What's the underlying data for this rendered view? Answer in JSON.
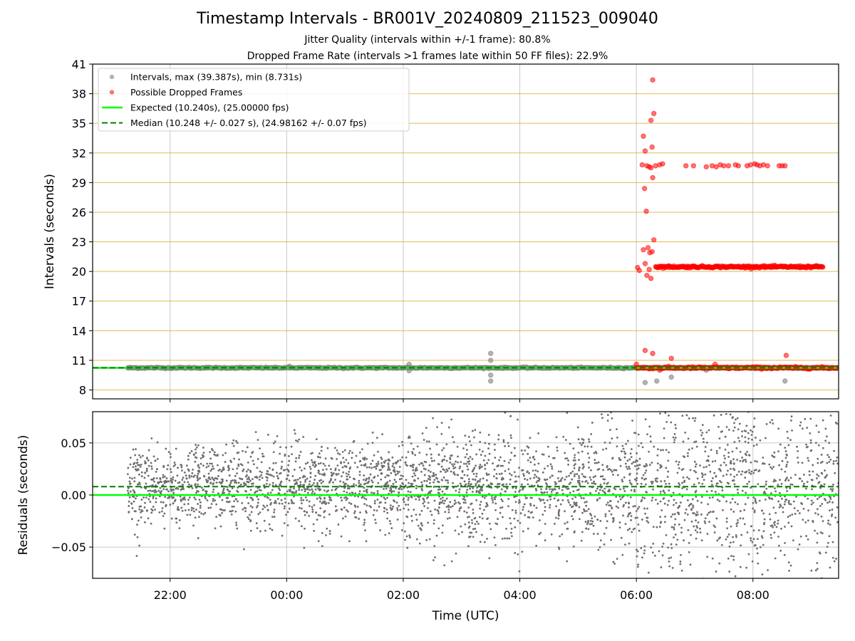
{
  "title": "Timestamp Intervals - BR001V_20240809_211523_009040",
  "subtitle_1": "Jitter Quality (intervals within +/-1 frame): 80.8%",
  "subtitle_2": "Dropped Frame Rate (intervals >1 frames late within 50 FF files): 22.9%",
  "colors": {
    "intervals": "#808080",
    "dropped": "#ff0000",
    "expected": "#00ff00",
    "median": "#008000",
    "hgrid_top": "#daa520",
    "grid": "#c8c8c8"
  },
  "chart_data": [
    {
      "type": "scatter",
      "ylabel": "Intervals (seconds)",
      "ylim": [
        7.1,
        41
      ],
      "yticks": [
        8,
        11,
        14,
        17,
        20,
        23,
        26,
        29,
        32,
        35,
        38,
        41
      ],
      "xlim_hours": [
        -3.33,
        9.47
      ],
      "grid": true,
      "legend_placement": "upper left",
      "legend": [
        {
          "label": "Intervals, max (39.387s), min (8.731s)",
          "marker": "gray-circle"
        },
        {
          "label": "Possible Dropped Frames",
          "marker": "red-circle"
        },
        {
          "label": "Expected (10.240s), (25.00000 fps)",
          "marker": "green-solid-line"
        },
        {
          "label": "Median (10.248 +/- 0.027 s), (24.98162 +/- 0.07 fps)",
          "marker": "green-dashed-line"
        }
      ],
      "expected": 10.24,
      "median": 10.248,
      "intervals_band": {
        "start_hour": -2.73,
        "end_hour": 9.47,
        "value": 10.24
      },
      "interval_outliers": [
        {
          "x": 0.05,
          "y": 10.4
        },
        {
          "x": 2.1,
          "y": 10.6
        },
        {
          "x": 2.1,
          "y": 9.95
        },
        {
          "x": 3.5,
          "y": 11.7
        },
        {
          "x": 3.5,
          "y": 11.0
        },
        {
          "x": 3.5,
          "y": 9.5
        },
        {
          "x": 3.5,
          "y": 8.9
        },
        {
          "x": 6.15,
          "y": 8.75
        },
        {
          "x": 6.35,
          "y": 8.9
        },
        {
          "x": 6.6,
          "y": 9.3
        },
        {
          "x": 8.55,
          "y": 8.9
        },
        {
          "x": 7.2,
          "y": 10.0
        }
      ],
      "dropped_bands": [
        {
          "start_hour": 6.0,
          "end_hour": 9.45,
          "value": 10.24
        },
        {
          "start_hour": 6.33,
          "end_hour": 9.2,
          "value": 20.47
        }
      ],
      "dropped_points": [
        {
          "x": 6.28,
          "y": 39.4
        },
        {
          "x": 6.3,
          "y": 36.0
        },
        {
          "x": 6.25,
          "y": 35.3
        },
        {
          "x": 6.12,
          "y": 33.7
        },
        {
          "x": 6.27,
          "y": 32.6
        },
        {
          "x": 6.15,
          "y": 32.2
        },
        {
          "x": 6.1,
          "y": 30.8
        },
        {
          "x": 6.18,
          "y": 30.7
        },
        {
          "x": 6.22,
          "y": 30.6
        },
        {
          "x": 6.25,
          "y": 30.5
        },
        {
          "x": 6.33,
          "y": 30.7
        },
        {
          "x": 6.4,
          "y": 30.8
        },
        {
          "x": 6.45,
          "y": 30.9
        },
        {
          "x": 6.85,
          "y": 30.7
        },
        {
          "x": 6.98,
          "y": 30.7
        },
        {
          "x": 7.2,
          "y": 30.6
        },
        {
          "x": 7.3,
          "y": 30.7
        },
        {
          "x": 7.37,
          "y": 30.6
        },
        {
          "x": 7.44,
          "y": 30.8
        },
        {
          "x": 7.5,
          "y": 30.7
        },
        {
          "x": 7.58,
          "y": 30.7
        },
        {
          "x": 7.7,
          "y": 30.8
        },
        {
          "x": 7.75,
          "y": 30.7
        },
        {
          "x": 7.9,
          "y": 30.7
        },
        {
          "x": 7.96,
          "y": 30.8
        },
        {
          "x": 8.03,
          "y": 30.9
        },
        {
          "x": 8.07,
          "y": 30.8
        },
        {
          "x": 8.12,
          "y": 30.7
        },
        {
          "x": 8.18,
          "y": 30.8
        },
        {
          "x": 8.25,
          "y": 30.7
        },
        {
          "x": 8.45,
          "y": 30.7
        },
        {
          "x": 8.5,
          "y": 30.7
        },
        {
          "x": 8.55,
          "y": 30.7
        },
        {
          "x": 6.28,
          "y": 29.5
        },
        {
          "x": 6.14,
          "y": 28.4
        },
        {
          "x": 6.17,
          "y": 26.1
        },
        {
          "x": 6.3,
          "y": 23.2
        },
        {
          "x": 6.12,
          "y": 22.2
        },
        {
          "x": 6.2,
          "y": 22.4
        },
        {
          "x": 6.23,
          "y": 21.9
        },
        {
          "x": 6.27,
          "y": 22.0
        },
        {
          "x": 6.15,
          "y": 20.8
        },
        {
          "x": 6.02,
          "y": 20.4
        },
        {
          "x": 6.05,
          "y": 20.1
        },
        {
          "x": 6.22,
          "y": 20.2
        },
        {
          "x": 6.18,
          "y": 19.6
        },
        {
          "x": 6.25,
          "y": 19.3
        },
        {
          "x": 6.15,
          "y": 12.0
        },
        {
          "x": 6.28,
          "y": 11.7
        },
        {
          "x": 6.6,
          "y": 11.2
        },
        {
          "x": 8.57,
          "y": 11.5
        },
        {
          "x": 6.0,
          "y": 10.6
        },
        {
          "x": 7.35,
          "y": 10.6
        },
        {
          "x": 6.4,
          "y": 10.0
        }
      ]
    },
    {
      "type": "scatter",
      "ylabel": "Residuals (seconds)",
      "xlabel": "Time (UTC)",
      "ylim": [
        -0.08,
        0.08
      ],
      "yticks": [
        {
          "value": 0.05,
          "label": "0.05"
        },
        {
          "value": 0.0,
          "label": "0.00"
        },
        {
          "value": -0.05,
          "label": "−0.05"
        }
      ],
      "xticks": [
        {
          "hour": -2,
          "label": "22:00"
        },
        {
          "hour": 0,
          "label": "00:00"
        },
        {
          "hour": 2,
          "label": "02:00"
        },
        {
          "hour": 4,
          "label": "04:00"
        },
        {
          "hour": 6,
          "label": "06:00"
        },
        {
          "hour": 8,
          "label": "08:00"
        }
      ],
      "expected_line": 0.0,
      "median_line": 0.008,
      "residual_spread": [
        {
          "from_hour": -2.73,
          "to_hour": 2.0,
          "sd": 0.02
        },
        {
          "from_hour": 2.0,
          "to_hour": 5.0,
          "sd": 0.027
        },
        {
          "from_hour": 5.0,
          "to_hour": 6.0,
          "sd": 0.03
        },
        {
          "from_hour": 6.0,
          "to_hour": 9.47,
          "sd": 0.05
        }
      ]
    }
  ]
}
